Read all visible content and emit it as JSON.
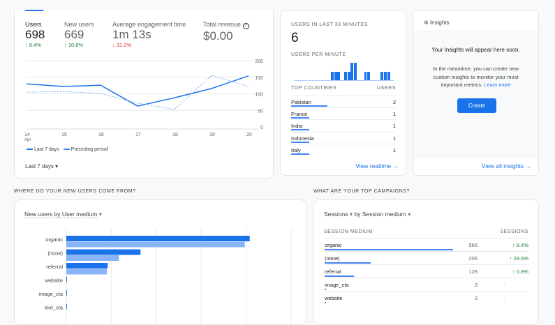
{
  "overview": {
    "metrics": [
      {
        "label": "Users",
        "value": "698",
        "change": "8.4%",
        "dir": "up"
      },
      {
        "label": "New users",
        "value": "669",
        "change": "10.8%",
        "dir": "up"
      },
      {
        "label": "Average engagement time",
        "value": "1m 13s",
        "change": "31.2%",
        "dir": "down"
      },
      {
        "label": "Total revenue",
        "value": "$0.00",
        "icon": "help-icon"
      }
    ],
    "date_range": "Last 7 days",
    "legend": [
      "Last 7 days",
      "Preceding period"
    ]
  },
  "chart_data": [
    {
      "type": "line",
      "x": [
        "14",
        "15",
        "16",
        "17",
        "18",
        "19",
        "20"
      ],
      "x_sub": "Apr",
      "ylim": [
        0,
        200
      ],
      "yticks": [
        "0",
        "50",
        "100",
        "150",
        "200"
      ],
      "series": [
        {
          "name": "Last 7 days",
          "values": [
            130,
            122,
            126,
            63,
            88,
            116,
            154
          ]
        },
        {
          "name": "Preceding period",
          "values": [
            105,
            107,
            101,
            72,
            53,
            156,
            122
          ]
        }
      ]
    },
    {
      "type": "bar",
      "title": "New users by User medium",
      "categories": [
        "organic",
        "(none)",
        "referral",
        "website",
        "image_cta",
        "text_cta"
      ],
      "xlim": [
        0,
        500
      ],
      "series": [
        {
          "name": "Last 7 days",
          "values": [
            408,
            165,
            92,
            1,
            1,
            1
          ]
        },
        {
          "name": "Preceding period",
          "values": [
            397,
            117,
            90,
            0,
            0,
            0
          ]
        }
      ]
    }
  ],
  "realtime": {
    "title": "USERS IN LAST 30 MINUTES",
    "value": "6",
    "per_minute_label": "USERS PER MINUTE",
    "per_minute": [
      0,
      0,
      0,
      0,
      0,
      0,
      0,
      0,
      0,
      0,
      0,
      1,
      1,
      1,
      0,
      1,
      1,
      2,
      2,
      0,
      0,
      1,
      1,
      0,
      0,
      0,
      1,
      1,
      1,
      0
    ],
    "countries_header": "TOP COUNTRIES",
    "users_header": "USERS",
    "countries": [
      {
        "name": "Pakistan",
        "users": "2",
        "share": 1
      },
      {
        "name": "France",
        "users": "1",
        "share": 0.5
      },
      {
        "name": "India",
        "users": "1",
        "share": 0.5
      },
      {
        "name": "Indonesia",
        "users": "1",
        "share": 0.5
      },
      {
        "name": "Italy",
        "users": "1",
        "share": 0.5
      }
    ],
    "view_link": "View realtime"
  },
  "insights": {
    "title": "Insights",
    "headline": "Your Insights will appear here soon.",
    "body": "In the meantime, you can create new custom insights to monitor your most important metrics.",
    "learn_more": "Learn more",
    "create": "Create",
    "view_all": "View all insights"
  },
  "sections": {
    "new_users": "WHERE DO YOUR NEW USERS COME FROM?",
    "campaigns": "WHAT ARE YOUR TOP CAMPAIGNS?"
  },
  "campaigns": {
    "metric": "Sessions",
    "dimension": "by Session medium",
    "col1": "SESSION MEDIUM",
    "col2": "SESSIONS",
    "rows": [
      {
        "name": "organic",
        "sessions": "566",
        "change": "8.4%",
        "share": 1
      },
      {
        "name": "(none)",
        "sessions": "206",
        "change": "29.6%",
        "share": 0.36
      },
      {
        "name": "referral",
        "sessions": "128",
        "change": "0.8%",
        "share": 0.23
      },
      {
        "name": "image_cta",
        "sessions": "3",
        "change": "-",
        "share": 0.005
      },
      {
        "name": "website",
        "sessions": "3",
        "change": "-",
        "share": 0.005
      }
    ]
  },
  "colors": {
    "accent": "#1a73e8",
    "light": "#8ab4f8",
    "up": "#188038",
    "down": "#d93025"
  }
}
